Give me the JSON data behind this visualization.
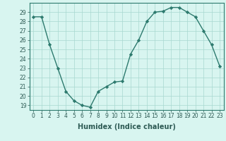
{
  "x": [
    0,
    1,
    2,
    3,
    4,
    5,
    6,
    7,
    8,
    9,
    10,
    11,
    12,
    13,
    14,
    15,
    16,
    17,
    18,
    19,
    20,
    21,
    22,
    23
  ],
  "y": [
    28.5,
    28.5,
    25.5,
    23.0,
    20.5,
    19.5,
    19.0,
    18.8,
    20.5,
    21.0,
    21.5,
    21.6,
    24.5,
    26.0,
    28.0,
    29.0,
    29.1,
    29.5,
    29.5,
    29.0,
    28.5,
    27.0,
    25.5,
    23.2
  ],
  "xlabel": "Humidex (Indice chaleur)",
  "ylim": [
    18.5,
    30.0
  ],
  "xlim": [
    -0.5,
    23.5
  ],
  "yticks": [
    19,
    20,
    21,
    22,
    23,
    24,
    25,
    26,
    27,
    28,
    29
  ],
  "xticks": [
    0,
    1,
    2,
    3,
    4,
    5,
    6,
    7,
    8,
    9,
    10,
    11,
    12,
    13,
    14,
    15,
    16,
    17,
    18,
    19,
    20,
    21,
    22,
    23
  ],
  "line_color": "#2d7a6e",
  "marker_color": "#2d7a6e",
  "bg_color": "#d8f5f0",
  "grid_color": "#a8d8d0",
  "tick_fontsize": 5.5,
  "label_fontsize": 7
}
